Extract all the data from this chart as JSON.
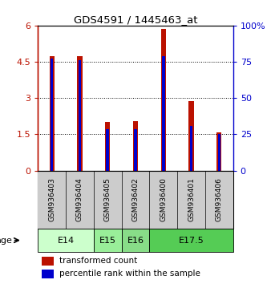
{
  "title": "GDS4591 / 1445463_at",
  "samples": [
    "GSM936403",
    "GSM936404",
    "GSM936405",
    "GSM936402",
    "GSM936400",
    "GSM936401",
    "GSM936406"
  ],
  "red_values": [
    4.72,
    4.72,
    2.02,
    2.05,
    5.87,
    2.87,
    1.57
  ],
  "blue_values": [
    4.62,
    4.58,
    1.72,
    1.72,
    4.72,
    1.85,
    1.5
  ],
  "red_color": "#BB1100",
  "blue_color": "#0000CC",
  "ylim_left": [
    0,
    6
  ],
  "ylim_right": [
    0,
    100
  ],
  "left_yticks": [
    0,
    1.5,
    3,
    4.5,
    6
  ],
  "right_yticks": [
    0,
    25,
    50,
    75,
    100
  ],
  "left_yticklabels": [
    "0",
    "1.5",
    "3",
    "4.5",
    "6"
  ],
  "right_yticklabels": [
    "0",
    "25",
    "50",
    "75",
    "100%"
  ],
  "age_groups": [
    {
      "label": "E14",
      "start": 0,
      "end": 2,
      "color": "#CCFFCC"
    },
    {
      "label": "E15",
      "start": 2,
      "end": 3,
      "color": "#99EE99"
    },
    {
      "label": "E16",
      "start": 3,
      "end": 4,
      "color": "#88DD88"
    },
    {
      "label": "E17.5",
      "start": 4,
      "end": 7,
      "color": "#55CC55"
    }
  ],
  "age_label": "age",
  "legend_red": "transformed count",
  "legend_blue": "percentile rank within the sample",
  "background_color": "#FFFFFF"
}
